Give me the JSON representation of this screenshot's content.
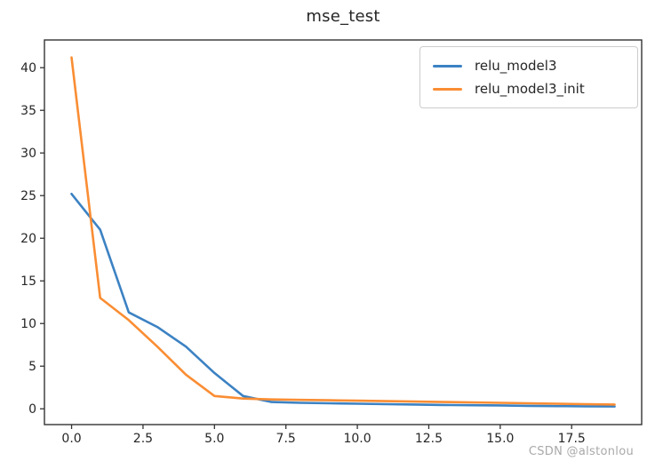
{
  "chart_data": {
    "type": "line",
    "title": "mse_test",
    "xlabel": "",
    "ylabel": "",
    "grid": false,
    "legend_position": "upper right",
    "axis_color": "#333333",
    "tick_label_color": "#262626",
    "xlim": [
      -0.95,
      19.95
    ],
    "ylim": [
      -1.85,
      43.25
    ],
    "xticks": {
      "values": [
        0,
        2.5,
        5,
        7.5,
        10,
        12.5,
        15,
        17.5
      ],
      "labels": [
        "0.0",
        "2.5",
        "5.0",
        "7.5",
        "10.0",
        "12.5",
        "15.0",
        "17.5"
      ]
    },
    "yticks": {
      "values": [
        0,
        5,
        10,
        15,
        20,
        25,
        30,
        35,
        40
      ],
      "labels": [
        "0",
        "5",
        "10",
        "15",
        "20",
        "25",
        "30",
        "35",
        "40"
      ]
    },
    "x": [
      0,
      1,
      2,
      3,
      4,
      5,
      6,
      7,
      8,
      9,
      10,
      11,
      12,
      13,
      14,
      15,
      16,
      17,
      18,
      19
    ],
    "series": [
      {
        "name": "relu_model3",
        "color": "#3c82c3",
        "values": [
          25.2,
          21.0,
          11.3,
          9.6,
          7.3,
          4.2,
          1.5,
          0.8,
          0.7,
          0.65,
          0.6,
          0.55,
          0.5,
          0.45,
          0.42,
          0.4,
          0.35,
          0.32,
          0.3,
          0.28
        ]
      },
      {
        "name": "relu_model3_init",
        "color": "#fa8d33",
        "values": [
          41.2,
          13.0,
          10.4,
          7.3,
          4.0,
          1.5,
          1.2,
          1.1,
          1.05,
          1.0,
          0.95,
          0.9,
          0.85,
          0.8,
          0.75,
          0.7,
          0.65,
          0.6,
          0.55,
          0.5
        ]
      }
    ]
  },
  "watermark": {
    "text": "CSDN @alstonlou",
    "color": "#a9a9a9"
  }
}
